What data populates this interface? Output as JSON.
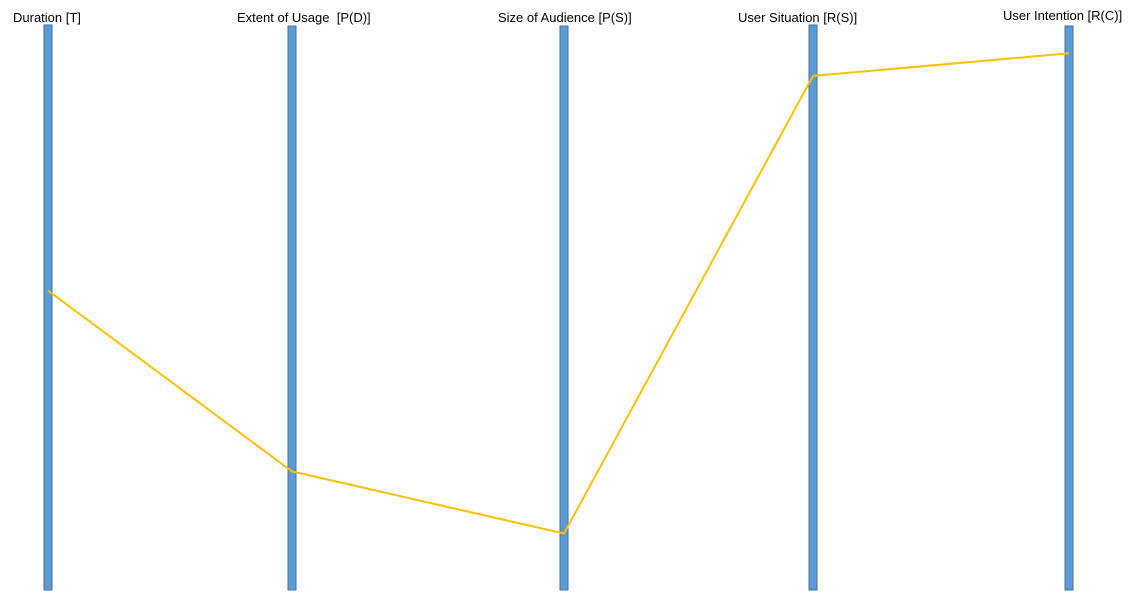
{
  "colors": {
    "axis_fill": "#5B9BD5",
    "axis_stroke": "#41719C",
    "line": "#FFC000",
    "background": "#FFFFFF"
  },
  "chart_data": {
    "type": "parallel-coordinates",
    "axes": [
      {
        "label": "Duration [T]"
      },
      {
        "label": "Extent of Usage  [P(D)]"
      },
      {
        "label": "Size of Audience [P(S)]"
      },
      {
        "label": "User Situation [R(S)]"
      },
      {
        "label": "User Intention [R(C)]"
      }
    ],
    "series": [
      {
        "values": [
          0.53,
          0.21,
          0.1,
          0.91,
          0.95
        ]
      }
    ],
    "scale": "0 (bottom) to 1 (top)",
    "grid": false,
    "legend": "none"
  }
}
